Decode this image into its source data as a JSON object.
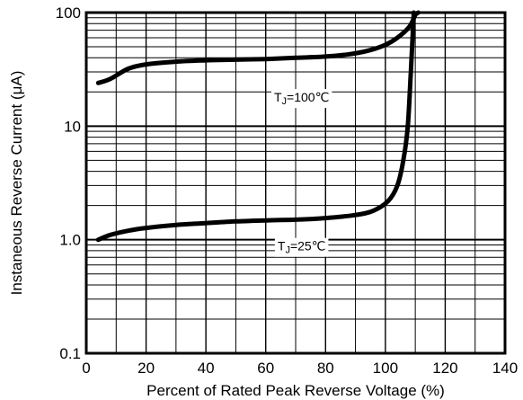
{
  "chart_data": {
    "type": "line",
    "xlabel": "Percent of Rated Peak Reverse Voltage (%)",
    "ylabel": "Instaneous Reverse Current (μA)",
    "xlim": [
      0,
      140
    ],
    "ylim": [
      0.1,
      100
    ],
    "yscale": "log",
    "grid": true,
    "x_ticks": [
      {
        "value": 0,
        "label": "0"
      },
      {
        "value": 20,
        "label": "20"
      },
      {
        "value": 40,
        "label": "40"
      },
      {
        "value": 60,
        "label": "60"
      },
      {
        "value": 80,
        "label": "80"
      },
      {
        "value": 100,
        "label": "100"
      },
      {
        "value": 120,
        "label": "120"
      },
      {
        "value": 140,
        "label": "140"
      }
    ],
    "y_ticks": [
      {
        "value": 0.1,
        "label": "0.1"
      },
      {
        "value": 1.0,
        "label": "1.0"
      },
      {
        "value": 10,
        "label": "10"
      },
      {
        "value": 100,
        "label": "100"
      }
    ],
    "series": [
      {
        "name": "TJ=100℃",
        "label_prefix": "T",
        "label_sub": "J",
        "label_suffix": "=100℃",
        "label_at": [
          72,
          18
        ],
        "points": [
          [
            4,
            24
          ],
          [
            8,
            26
          ],
          [
            14,
            32
          ],
          [
            20,
            35
          ],
          [
            30,
            37
          ],
          [
            40,
            38
          ],
          [
            50,
            38.5
          ],
          [
            60,
            39
          ],
          [
            70,
            40
          ],
          [
            80,
            41
          ],
          [
            88,
            43
          ],
          [
            94,
            46
          ],
          [
            100,
            52
          ],
          [
            104,
            60
          ],
          [
            108,
            75
          ],
          [
            110,
            95
          ],
          [
            111,
            100
          ]
        ]
      },
      {
        "name": "TJ=25℃",
        "label_prefix": "T",
        "label_sub": "J",
        "label_suffix": "=25℃",
        "label_at": [
          72,
          0.88
        ],
        "points": [
          [
            4,
            1.0
          ],
          [
            8,
            1.1
          ],
          [
            14,
            1.2
          ],
          [
            20,
            1.27
          ],
          [
            30,
            1.35
          ],
          [
            40,
            1.4
          ],
          [
            50,
            1.45
          ],
          [
            60,
            1.48
          ],
          [
            70,
            1.5
          ],
          [
            80,
            1.55
          ],
          [
            90,
            1.65
          ],
          [
            96,
            1.8
          ],
          [
            101,
            2.2
          ],
          [
            104,
            3.0
          ],
          [
            106,
            5.0
          ],
          [
            107.5,
            10
          ],
          [
            108.5,
            30
          ],
          [
            109.5,
            100
          ]
        ]
      }
    ]
  }
}
